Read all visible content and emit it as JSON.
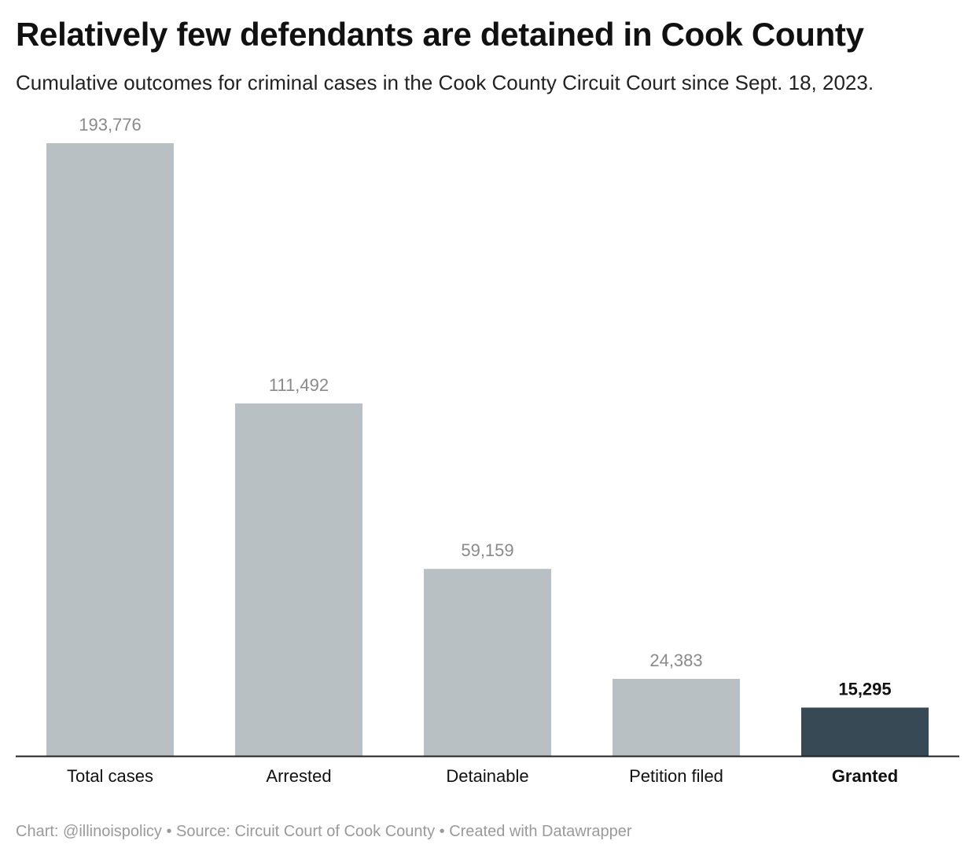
{
  "title": "Relatively few defendants are detained in Cook County",
  "subtitle": "Cumulative outcomes for criminal cases in the Cook County Circuit Court since Sept. 18, 2023.",
  "footer": {
    "credit": "Chart: @illinoispolicy",
    "separator": " • ",
    "source": "Source: Circuit Court of Cook County",
    "created_with": "Created with Datawrapper"
  },
  "chart_data": {
    "type": "bar",
    "categories": [
      "Total cases",
      "Arrested",
      "Detainable",
      "Petition filed",
      "Granted"
    ],
    "values": [
      193776,
      111492,
      59159,
      24383,
      15295
    ],
    "value_labels": [
      "193,776",
      "111,492",
      "59,159",
      "24,383",
      "15,295"
    ],
    "highlight": "Granted",
    "colors": {
      "bar": "#b8c0c3",
      "highlight_bar": "#374955",
      "value_label": "#8a8a8a",
      "highlight_label": "#111111",
      "axis": "#222222"
    },
    "ylim": [
      0,
      193776
    ],
    "grid": false,
    "legend": "none"
  }
}
